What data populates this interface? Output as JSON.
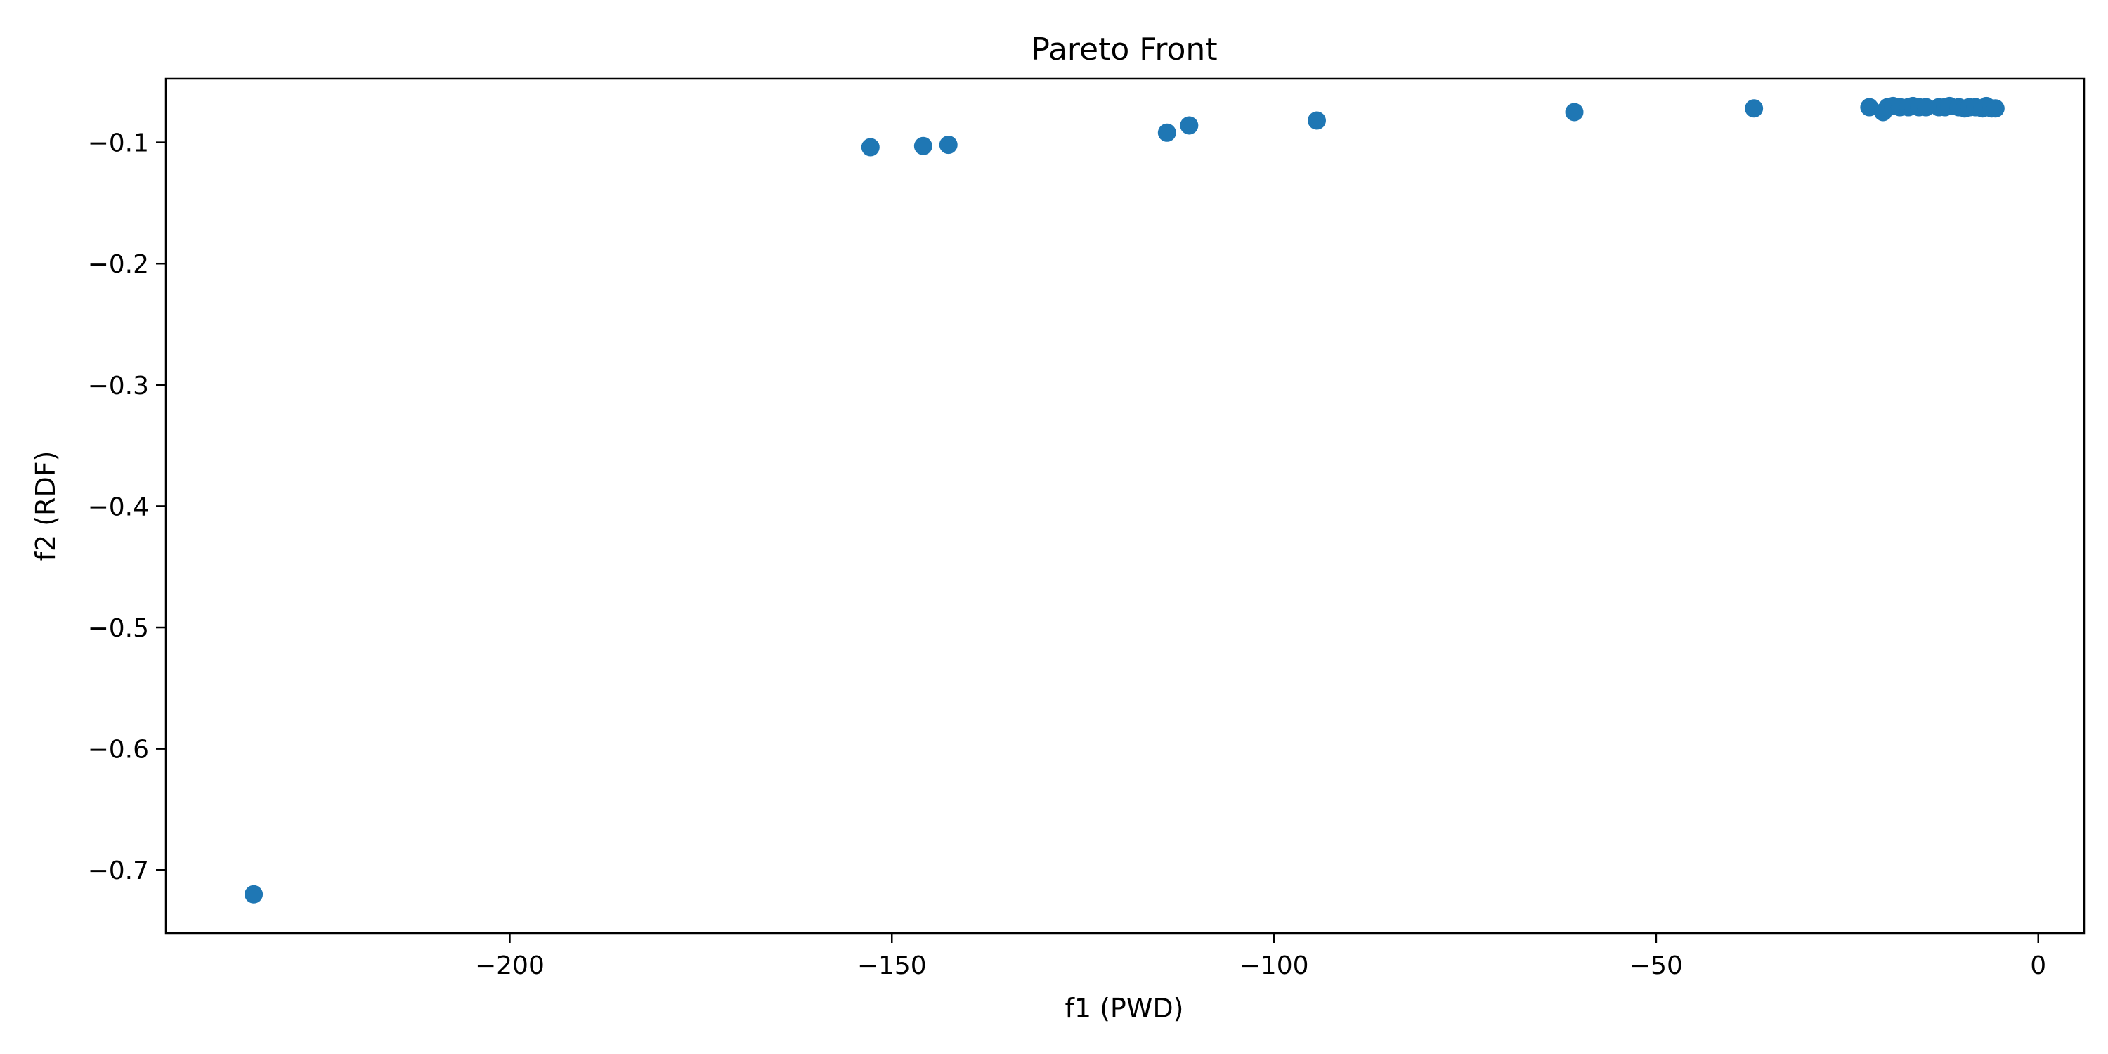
{
  "chart_data": {
    "type": "scatter",
    "title": "Pareto Front",
    "xlabel": "f1 (PWD)",
    "ylabel": "f2 (RDF)",
    "xlim": [
      -245,
      6
    ],
    "ylim": [
      -0.752,
      -0.0475
    ],
    "xticks": [
      -200,
      -150,
      -100,
      -50,
      0
    ],
    "xtick_labels": [
      "−200",
      "−150",
      "−100",
      "−50",
      "0"
    ],
    "yticks": [
      -0.1,
      -0.2,
      -0.3,
      -0.4,
      -0.5,
      -0.6,
      -0.7
    ],
    "ytick_labels": [
      "−0.1",
      "−0.2",
      "−0.3",
      "−0.4",
      "−0.5",
      "−0.6",
      "−0.7"
    ],
    "grid": false,
    "marker_color": "#1f77b4",
    "points": [
      {
        "x": -233.5,
        "y": -0.72
      },
      {
        "x": -152.8,
        "y": -0.104
      },
      {
        "x": -145.9,
        "y": -0.103
      },
      {
        "x": -142.6,
        "y": -0.102
      },
      {
        "x": -114.0,
        "y": -0.092
      },
      {
        "x": -111.1,
        "y": -0.086
      },
      {
        "x": -94.4,
        "y": -0.082
      },
      {
        "x": -60.7,
        "y": -0.075
      },
      {
        "x": -37.2,
        "y": -0.072
      },
      {
        "x": -22.1,
        "y": -0.071
      },
      {
        "x": -20.3,
        "y": -0.075
      },
      {
        "x": -19.7,
        "y": -0.071
      },
      {
        "x": -19.0,
        "y": -0.07
      },
      {
        "x": -18.1,
        "y": -0.071
      },
      {
        "x": -17.0,
        "y": -0.071
      },
      {
        "x": -16.4,
        "y": -0.07
      },
      {
        "x": -15.6,
        "y": -0.071
      },
      {
        "x": -14.7,
        "y": -0.071
      },
      {
        "x": -13.0,
        "y": -0.071
      },
      {
        "x": -12.2,
        "y": -0.071
      },
      {
        "x": -11.6,
        "y": -0.07
      },
      {
        "x": -10.4,
        "y": -0.071
      },
      {
        "x": -9.6,
        "y": -0.072
      },
      {
        "x": -9.0,
        "y": -0.071
      },
      {
        "x": -8.2,
        "y": -0.071
      },
      {
        "x": -7.3,
        "y": -0.072
      },
      {
        "x": -6.8,
        "y": -0.07
      },
      {
        "x": -6.1,
        "y": -0.072
      },
      {
        "x": -5.6,
        "y": -0.072
      }
    ]
  }
}
